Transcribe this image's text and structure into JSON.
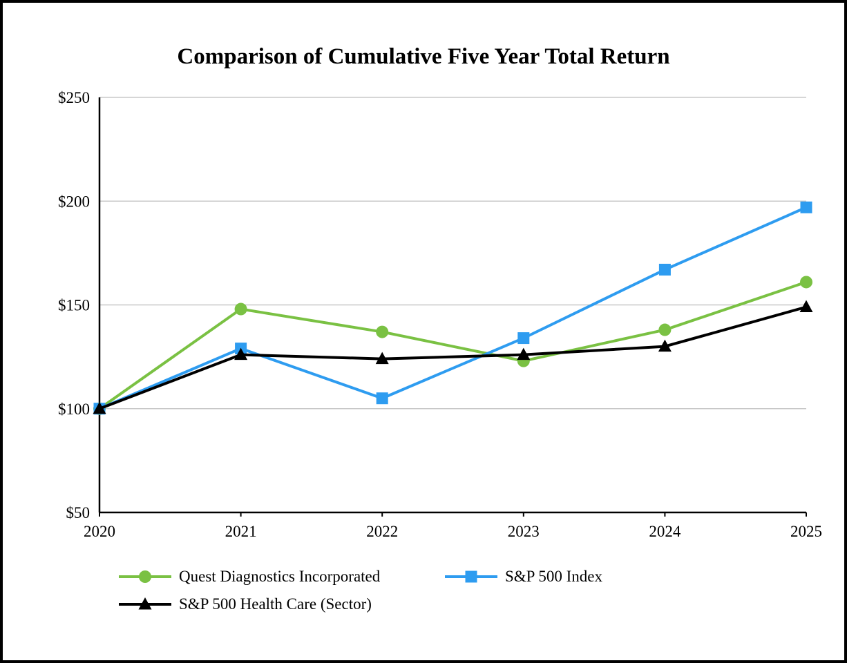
{
  "page": {
    "background_color": "#ffffff",
    "frame_border_color": "#000000"
  },
  "chart_data": {
    "type": "line",
    "title": "Comparison of Cumulative Five Year Total Return",
    "x_categories": [
      "2020",
      "2021",
      "2022",
      "2023",
      "2024",
      "2025"
    ],
    "y_ticks": [
      50,
      100,
      150,
      200,
      250
    ],
    "y_tick_labels": [
      "$50",
      "$100",
      "$150",
      "$200",
      "$250"
    ],
    "ylim": [
      50,
      250
    ],
    "grid": "horizontal-light-gray",
    "legend_position": "bottom-left",
    "axis_color": "#000000",
    "gridline_color": "#c8c8c8",
    "series": [
      {
        "name": "Quest Diagnostics Incorporated",
        "color": "#7AC143",
        "marker": "circle",
        "values": [
          100,
          148,
          137,
          123,
          138,
          161
        ]
      },
      {
        "name": "S&P 500 Index",
        "color": "#2E9CF0",
        "marker": "square",
        "values": [
          100,
          129,
          105,
          134,
          167,
          197
        ]
      },
      {
        "name": "S&P 500 Health Care (Sector)",
        "color": "#000000",
        "marker": "triangle",
        "values": [
          100,
          126,
          124,
          126,
          130,
          149
        ]
      }
    ]
  }
}
